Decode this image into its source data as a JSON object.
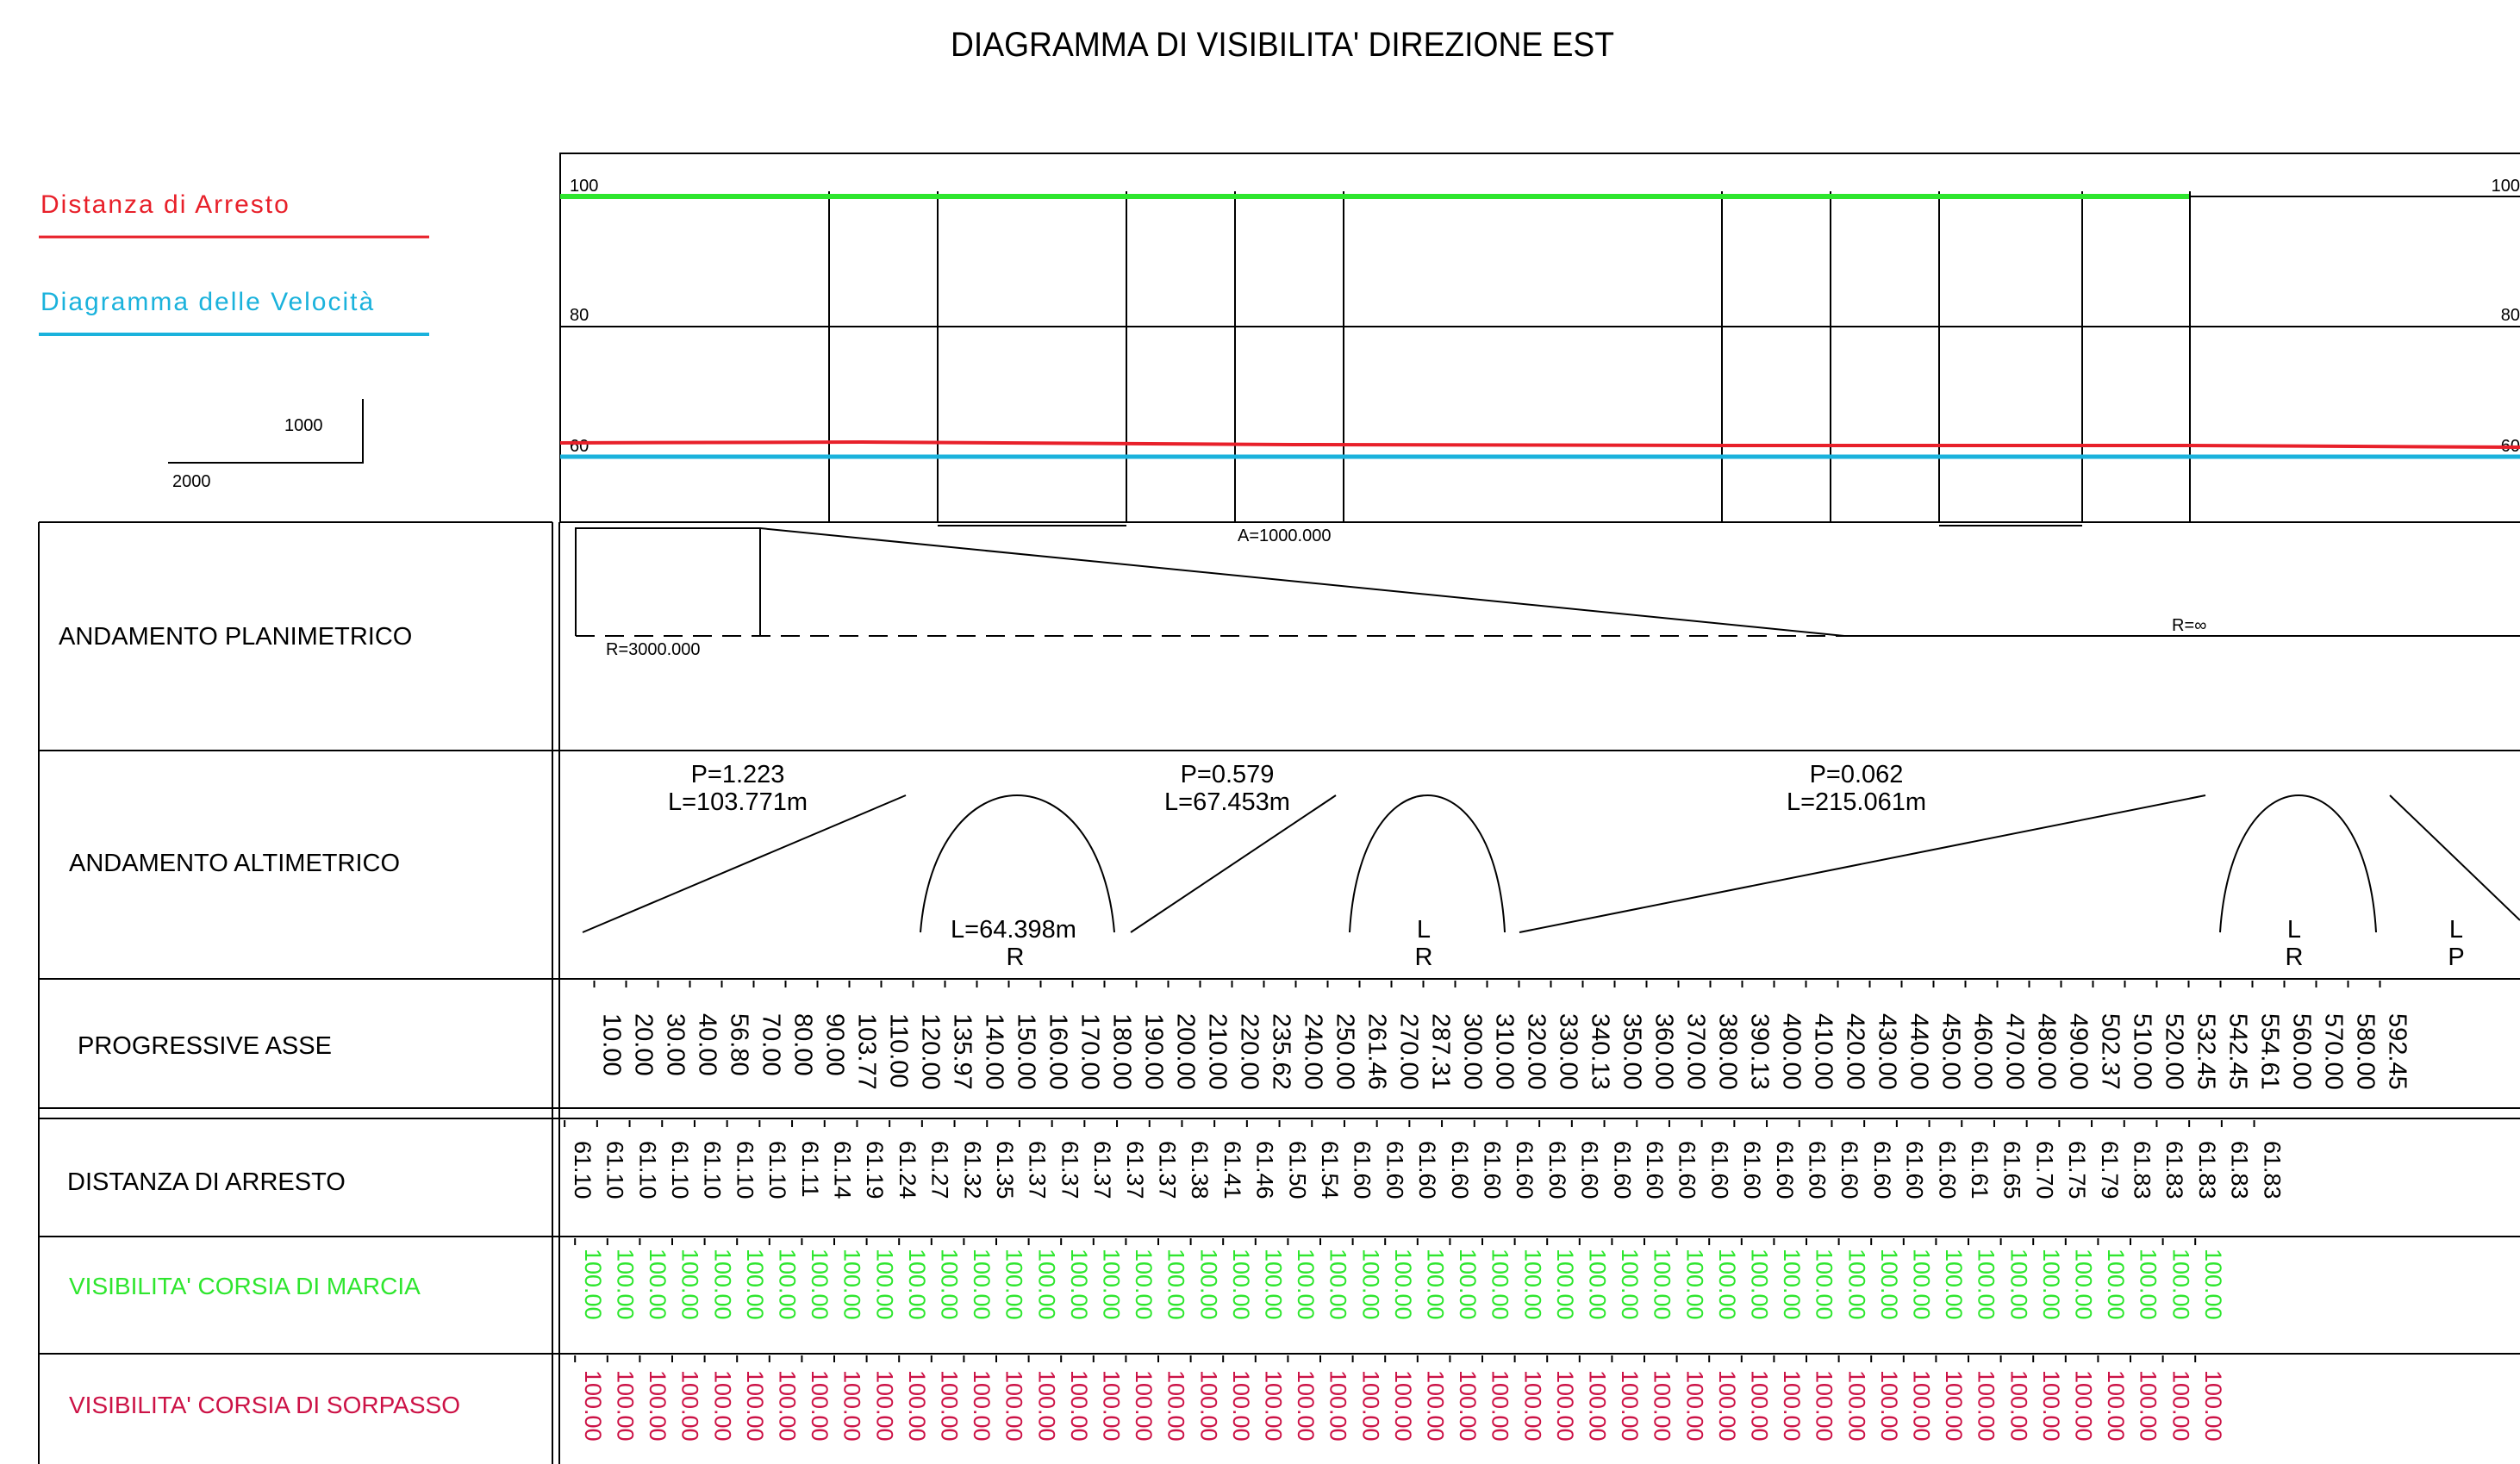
{
  "title": "DIAGRAMMA DI VISIBILITA' DIREZIONE EST",
  "legend": {
    "stop_label": "Distanza di Arresto",
    "speed_label": "Diagramma delle Velocità",
    "scale_h": "2000",
    "scale_v": "1000"
  },
  "colors": {
    "stop": "#e8202a",
    "speed": "#1ab2dc",
    "marcia": "#2ee62e",
    "sorpasso": "#cc1246",
    "ink": "#000000"
  },
  "graph": {
    "ticks_left": [
      "100",
      "80",
      "60"
    ],
    "ticks_right": [
      "100",
      "80",
      "60"
    ]
  },
  "rows": {
    "planimetrico": "ANDAMENTO PLANIMETRICO",
    "altimetrico": "ANDAMENTO ALTIMETRICO",
    "progressive": "PROGRESSIVE ASSE",
    "arresto": "DISTANZA DI ARRESTO",
    "marcia": "VISIBILITA' CORSIA DI MARCIA",
    "sorpasso": "VISIBILITA' CORSIA DI SORPASSO"
  },
  "planimetrico": {
    "radius_1": "R=3000.000",
    "clothoid": "A=1000.000",
    "radius_2": "R=∞"
  },
  "altimetrico": {
    "slope_1": "P=1.223",
    "len_1": "L=103.771m",
    "slope_2": "P=0.579",
    "len_2": "L=67.453m",
    "slope_3": "P=0.062",
    "len_3": "L=215.061m",
    "curve_1_len": "L=64.398m",
    "curve_1_r": "R",
    "curve_2_l": "L",
    "curve_2_r": "R",
    "curve_3_l": "L",
    "curve_3_r": "R",
    "tail_l": "L",
    "tail_p": "P"
  },
  "progressive": [
    "10.00",
    "20.00",
    "30.00",
    "40.00",
    "56.80",
    "70.00",
    "80.00",
    "90.00",
    "103.77",
    "110.00",
    "120.00",
    "135.97",
    "140.00",
    "150.00",
    "160.00",
    "170.00",
    "180.00",
    "190.00",
    "200.00",
    "210.00",
    "220.00",
    "235.62",
    "240.00",
    "250.00",
    "261.46",
    "270.00",
    "287.31",
    "300.00",
    "310.00",
    "320.00",
    "330.00",
    "340.13",
    "350.00",
    "360.00",
    "370.00",
    "380.00",
    "390.13",
    "400.00",
    "410.00",
    "420.00",
    "430.00",
    "440.00",
    "450.00",
    "460.00",
    "470.00",
    "480.00",
    "490.00",
    "502.37",
    "510.00",
    "520.00",
    "532.45",
    "542.45",
    "554.61",
    "560.00",
    "570.00",
    "580.00",
    "592.45"
  ],
  "arresto": [
    "61.10",
    "61.10",
    "61.10",
    "61.10",
    "61.10",
    "61.10",
    "61.10",
    "61.11",
    "61.14",
    "61.19",
    "61.24",
    "61.27",
    "61.32",
    "61.35",
    "61.37",
    "61.37",
    "61.37",
    "61.37",
    "61.37",
    "61.38",
    "61.41",
    "61.46",
    "61.50",
    "61.54",
    "61.60",
    "61.60",
    "61.60",
    "61.60",
    "61.60",
    "61.60",
    "61.60",
    "61.60",
    "61.60",
    "61.60",
    "61.60",
    "61.60",
    "61.60",
    "61.60",
    "61.60",
    "61.60",
    "61.60",
    "61.60",
    "61.60",
    "61.61",
    "61.65",
    "61.70",
    "61.75",
    "61.79",
    "61.83",
    "61.83",
    "61.83",
    "61.83",
    "61.83"
  ],
  "marcia": [
    "100.00",
    "100.00",
    "100.00",
    "100.00",
    "100.00",
    "100.00",
    "100.00",
    "100.00",
    "100.00",
    "100.00",
    "100.00",
    "100.00",
    "100.00",
    "100.00",
    "100.00",
    "100.00",
    "100.00",
    "100.00",
    "100.00",
    "100.00",
    "100.00",
    "100.00",
    "100.00",
    "100.00",
    "100.00",
    "100.00",
    "100.00",
    "100.00",
    "100.00",
    "100.00",
    "100.00",
    "100.00",
    "100.00",
    "100.00",
    "100.00",
    "100.00",
    "100.00",
    "100.00",
    "100.00",
    "100.00",
    "100.00",
    "100.00",
    "100.00",
    "100.00",
    "100.00",
    "100.00",
    "100.00",
    "100.00",
    "100.00",
    "100.00",
    "100.00"
  ],
  "sorpasso": [
    "100.00",
    "100.00",
    "100.00",
    "100.00",
    "100.00",
    "100.00",
    "100.00",
    "100.00",
    "100.00",
    "100.00",
    "100.00",
    "100.00",
    "100.00",
    "100.00",
    "100.00",
    "100.00",
    "100.00",
    "100.00",
    "100.00",
    "100.00",
    "100.00",
    "100.00",
    "100.00",
    "100.00",
    "100.00",
    "100.00",
    "100.00",
    "100.00",
    "100.00",
    "100.00",
    "100.00",
    "100.00",
    "100.00",
    "100.00",
    "100.00",
    "100.00",
    "100.00",
    "100.00",
    "100.00",
    "100.00",
    "100.00",
    "100.00",
    "100.00",
    "100.00",
    "100.00",
    "100.00",
    "100.00",
    "100.00",
    "100.00",
    "100.00",
    "100.00"
  ]
}
